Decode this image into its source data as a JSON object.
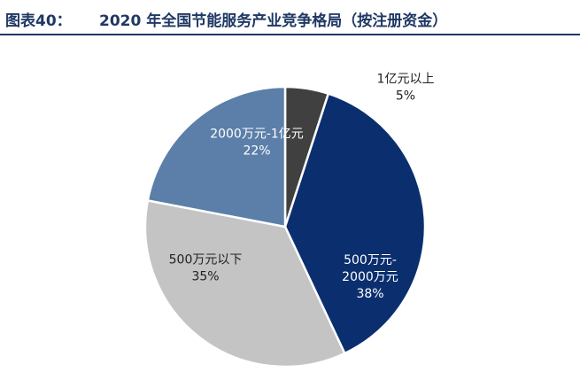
{
  "figure": {
    "label": "图表40：",
    "title": "2020 年全国节能服务产业竞争格局（按注册资金）"
  },
  "chart_data": {
    "type": "pie",
    "title": "2020 年全国节能服务产业竞争格局（按注册资金）",
    "start_angle_deg": 0,
    "direction": "clockwise",
    "slices": [
      {
        "label": "1亿元以上",
        "value": 5,
        "value_label": "5%",
        "color": "#404040",
        "text_color": "#222222"
      },
      {
        "label": "500万元-2000万元",
        "label_lines": [
          "500万元-",
          "2000万元"
        ],
        "value": 38,
        "value_label": "38%",
        "color": "#0b2f6e",
        "text_color": "#ffffff"
      },
      {
        "label": "500万元以下",
        "value": 35,
        "value_label": "35%",
        "color": "#c4c4c4",
        "text_color": "#222222"
      },
      {
        "label": "2000万元-1亿元",
        "value": 22,
        "value_label": "22%",
        "color": "#5b7fa9",
        "text_color": "#ffffff"
      }
    ]
  }
}
